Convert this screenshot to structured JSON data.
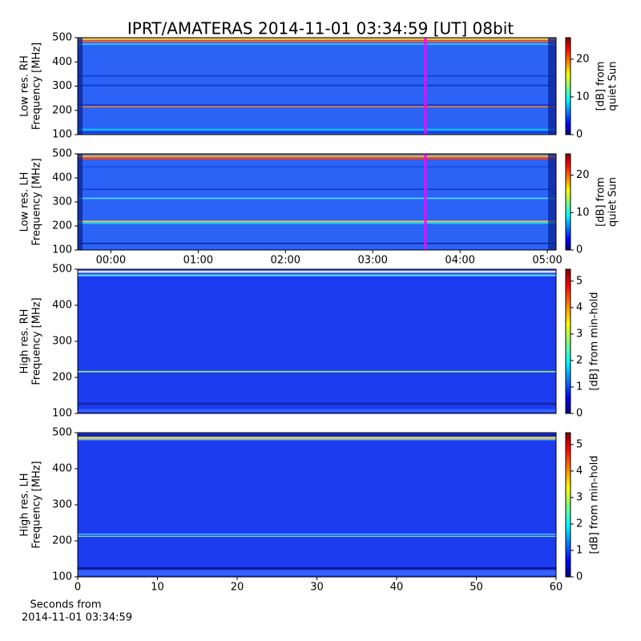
{
  "chart_data": [
    {
      "type": "spectrogram",
      "title": "IPRT/AMATERAS 2014-11-01 03:34:59 [UT]   08bit",
      "ylabel": [
        "Low res. RH",
        "Frequency [MHz]"
      ],
      "ylim": [
        100,
        500
      ],
      "yticks": [
        100,
        200,
        300,
        400,
        500
      ],
      "xlim": [
        -0.38,
        5.1
      ],
      "colorbar": {
        "label": [
          "[dB] from",
          "quiet Sun"
        ],
        "lim": [
          0,
          25.7
        ],
        "ticks": [
          0,
          10,
          20
        ]
      }
    },
    {
      "type": "spectrogram",
      "ylabel": [
        "Low res. LH",
        "Frequency [MHz]"
      ],
      "ylim": [
        100,
        500
      ],
      "yticks": [
        100,
        200,
        300,
        400,
        500
      ],
      "xlim": [
        -0.38,
        5.1
      ],
      "xticks": [
        {
          "value": 0,
          "label": "00:00"
        },
        {
          "value": 1,
          "label": "01:00"
        },
        {
          "value": 2,
          "label": "02:00"
        },
        {
          "value": 3,
          "label": "03:00"
        },
        {
          "value": 4,
          "label": "04:00"
        },
        {
          "value": 5,
          "label": "05:00"
        }
      ],
      "colorbar": {
        "label": [
          "[dB] from",
          "quiet Sun"
        ],
        "lim": [
          0,
          25.7
        ],
        "ticks": [
          0,
          10,
          20
        ]
      }
    },
    {
      "type": "spectrogram",
      "ylabel": [
        "High res. RH",
        "Frequency [MHz]"
      ],
      "ylim": [
        100,
        500
      ],
      "yticks": [
        100,
        200,
        300,
        400,
        500
      ],
      "xlim": [
        0,
        60
      ],
      "colorbar": {
        "label": [
          "[dB] from min-hold"
        ],
        "lim": [
          0,
          5.45
        ],
        "ticks": [
          0,
          1,
          2,
          3,
          4,
          5
        ]
      }
    },
    {
      "type": "spectrogram",
      "ylabel": [
        "High res. LH",
        "Frequency [MHz]"
      ],
      "ylim": [
        100,
        500
      ],
      "yticks": [
        100,
        200,
        300,
        400,
        500
      ],
      "xlim": [
        0,
        60
      ],
      "xticks": [
        0,
        10,
        20,
        30,
        40,
        50,
        60
      ],
      "xlabel": [
        "Seconds from",
        "2014-11-01 03:34:59"
      ],
      "colorbar": {
        "label": [
          "[dB] from min-hold"
        ],
        "lim": [
          0,
          5.45
        ],
        "ticks": [
          0,
          1,
          2,
          3,
          4,
          5
        ]
      }
    }
  ]
}
